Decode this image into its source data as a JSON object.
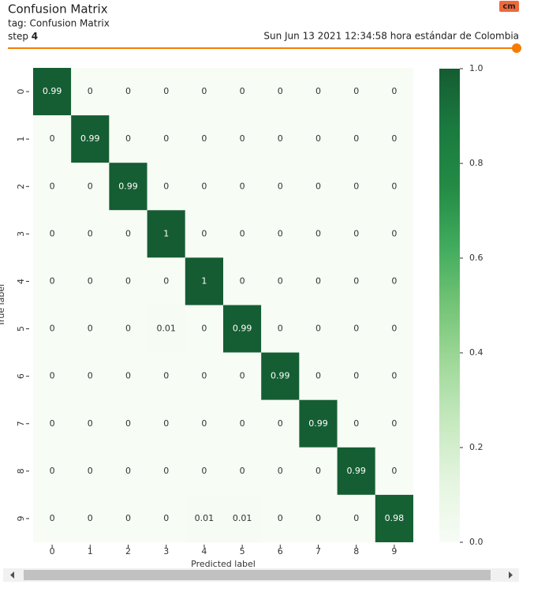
{
  "header": {
    "title": "Confusion Matrix",
    "tag": "tag: Confusion Matrix",
    "step_label": "step",
    "step": "4",
    "timestamp": "Sun Jun 13 2021 12:34:58 hora estándar de Colombia",
    "badge": "cm"
  },
  "chart_data": {
    "type": "heatmap",
    "x_label": "Predicted label",
    "y_label": "True label",
    "x_categories": [
      "0",
      "1",
      "2",
      "3",
      "4",
      "5",
      "6",
      "7",
      "8",
      "9"
    ],
    "y_categories": [
      "0",
      "1",
      "2",
      "3",
      "4",
      "5",
      "6",
      "7",
      "8",
      "9"
    ],
    "values": [
      [
        0.99,
        0,
        0,
        0,
        0,
        0,
        0,
        0,
        0,
        0
      ],
      [
        0,
        0.99,
        0,
        0,
        0,
        0,
        0,
        0,
        0,
        0
      ],
      [
        0,
        0,
        0.99,
        0,
        0,
        0,
        0,
        0,
        0,
        0
      ],
      [
        0,
        0,
        0,
        1,
        0,
        0,
        0,
        0,
        0,
        0
      ],
      [
        0,
        0,
        0,
        0,
        1,
        0,
        0,
        0,
        0,
        0
      ],
      [
        0,
        0,
        0,
        0.01,
        0,
        0.99,
        0,
        0,
        0,
        0
      ],
      [
        0,
        0,
        0,
        0,
        0,
        0,
        0.99,
        0,
        0,
        0
      ],
      [
        0,
        0,
        0,
        0,
        0,
        0,
        0,
        0.99,
        0,
        0
      ],
      [
        0,
        0,
        0,
        0,
        0,
        0,
        0,
        0,
        0.99,
        0
      ],
      [
        0,
        0,
        0,
        0,
        0.01,
        0.01,
        0,
        0,
        0,
        0.98
      ]
    ],
    "zlim": [
      0,
      1
    ],
    "zticks": [
      {
        "value": 0,
        "label": "0.0"
      },
      0.2,
      0.4,
      0.6,
      0.8,
      {
        "value": 1,
        "label": "1.0"
      }
    ],
    "colormap": [
      "#f7fcf5",
      "#e5f5e0",
      "#c7e9c0",
      "#a1d99b",
      "#74c476",
      "#41ab5d",
      "#238b45",
      "#1a7a3f",
      "#155c32"
    ]
  }
}
